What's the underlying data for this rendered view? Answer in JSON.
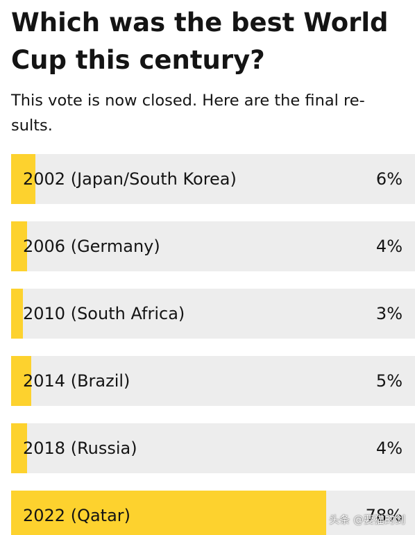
{
  "poll": {
    "question": "Which was the best World Cup this century?",
    "status_text": "This vote is now closed. Here are the final re-sults.",
    "results": [
      {
        "label": "2002 (Japan/South Korea)",
        "percent_text": "6%",
        "percent": 6
      },
      {
        "label": "2006 (Germany)",
        "percent_text": "4%",
        "percent": 4
      },
      {
        "label": "2010 (South Africa)",
        "percent_text": "3%",
        "percent": 3
      },
      {
        "label": "2014 (Brazil)",
        "percent_text": "5%",
        "percent": 5
      },
      {
        "label": "2018 (Russia)",
        "percent_text": "4%",
        "percent": 4
      },
      {
        "label": "2022 (Qatar)",
        "percent_text": "78%",
        "percent": 78
      }
    ]
  },
  "colors": {
    "bar_fill": "#fdd22e",
    "bar_track": "#ededed",
    "text": "#141414"
  },
  "watermark": "头条 @要猫的剑"
}
